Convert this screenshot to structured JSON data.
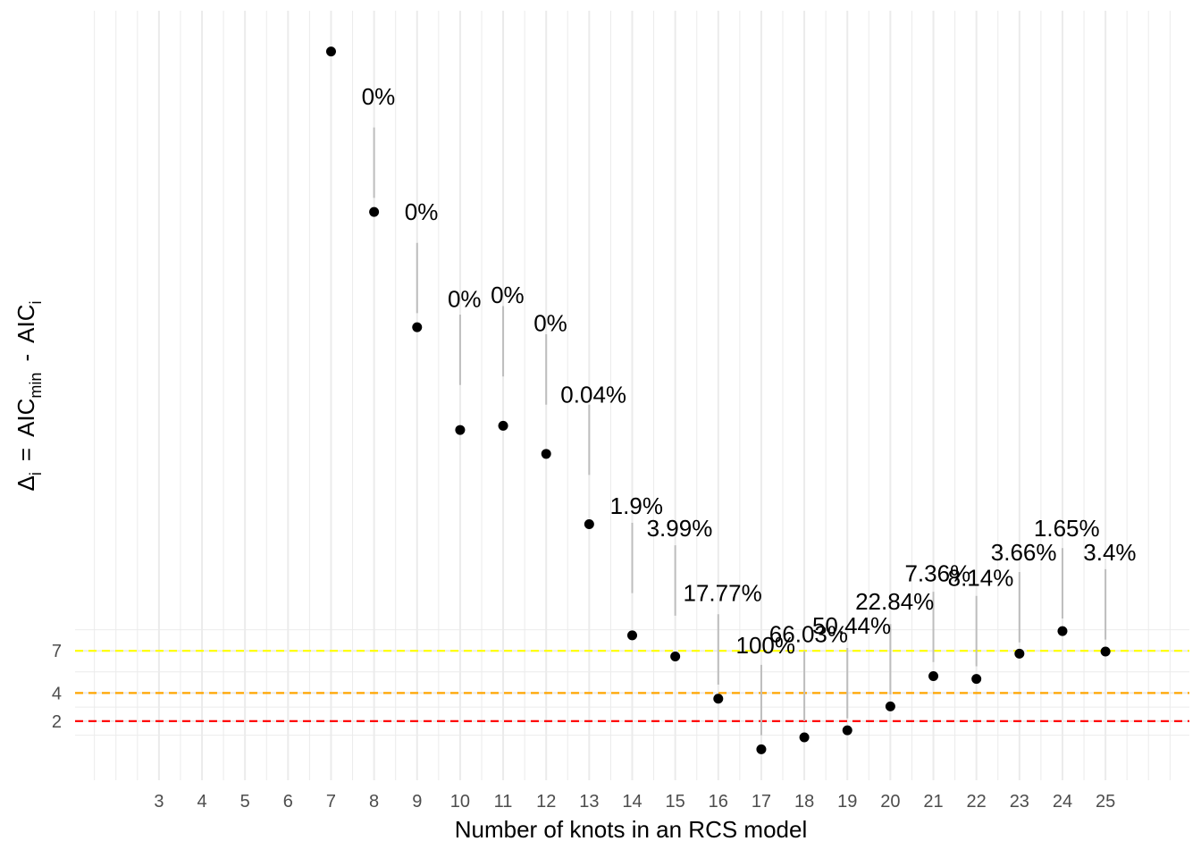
{
  "chart_data": {
    "type": "scatter",
    "xlabel": "Number of knots in an RCS model",
    "ylabel_parts": {
      "delta": "Δ",
      "delta_sub": "i",
      "eq": "=",
      "aic1": "AIC",
      "aic1_sub": "min",
      "minus": "-",
      "aic2": "AIC",
      "aic2_sub": "i"
    },
    "x_ticks": [
      "3",
      "4",
      "5",
      "6",
      "7",
      "8",
      "9",
      "10",
      "11",
      "12",
      "13",
      "14",
      "15",
      "16",
      "17",
      "18",
      "19",
      "20",
      "21",
      "22",
      "23",
      "24",
      "25"
    ],
    "y_ticks": [
      "2",
      "4",
      "7"
    ],
    "xlim": [
      1.05,
      26.95
    ],
    "ylim": [
      -2.2,
      52.5
    ],
    "grid": true,
    "reference_lines": [
      {
        "y": 7,
        "color": "#ffff00"
      },
      {
        "y": 4,
        "color": "#ffa500"
      },
      {
        "y": 2,
        "color": "#ff0000"
      }
    ],
    "points": [
      {
        "x": 7,
        "y": 49.6
      },
      {
        "x": 8,
        "y": 38.2
      },
      {
        "x": 9,
        "y": 30.0
      },
      {
        "x": 10,
        "y": 22.7
      },
      {
        "x": 11,
        "y": 23.0
      },
      {
        "x": 12,
        "y": 21.0
      },
      {
        "x": 13,
        "y": 16.0
      },
      {
        "x": 14,
        "y": 8.1
      },
      {
        "x": 15,
        "y": 6.6
      },
      {
        "x": 16,
        "y": 3.6
      },
      {
        "x": 17,
        "y": 0.0
      },
      {
        "x": 18,
        "y": 0.85
      },
      {
        "x": 19,
        "y": 1.35
      },
      {
        "x": 20,
        "y": 3.05
      },
      {
        "x": 21,
        "y": 5.2
      },
      {
        "x": 22,
        "y": 5.0
      },
      {
        "x": 23,
        "y": 6.8
      },
      {
        "x": 24,
        "y": 8.4
      },
      {
        "x": 25,
        "y": 6.95
      }
    ],
    "annotations": [
      {
        "x": 8,
        "label": "0%",
        "seg_y": [
          39.2,
          44.2
        ],
        "label_y": 46.4
      },
      {
        "x": 9,
        "label": "0%",
        "seg_y": [
          31.0,
          36.0
        ],
        "label_y": 38.2
      },
      {
        "x": 10,
        "label": "0%",
        "seg_y": [
          25.9,
          30.9
        ],
        "label_y": 32.0
      },
      {
        "x": 11,
        "label": "0%",
        "seg_y": [
          26.5,
          31.5
        ],
        "label_y": 32.3
      },
      {
        "x": 12,
        "label": "0%",
        "seg_y": [
          24.5,
          29.5
        ],
        "label_y": 30.3
      },
      {
        "x": 13,
        "label": "0.04%",
        "seg_y": [
          19.5,
          24.5
        ],
        "label_y": 25.2
      },
      {
        "x": 14,
        "label": "1.9%",
        "seg_y": [
          11.1,
          16.1
        ],
        "label_y": 17.3
      },
      {
        "x": 15,
        "label": "3.99%",
        "seg_y": [
          9.5,
          14.5
        ],
        "label_y": 15.7
      },
      {
        "x": 16,
        "label": "17.77%",
        "seg_y": [
          4.6,
          9.6
        ],
        "label_y": 11.1
      },
      {
        "x": 17,
        "label": "100%",
        "seg_y": [
          1.0,
          6.0
        ],
        "label_y": 7.4
      },
      {
        "x": 18,
        "label": "66.03%",
        "seg_y": [
          2.0,
          7.0
        ],
        "label_y": 8.2
      },
      {
        "x": 19,
        "label": "50.44%",
        "seg_y": [
          2.2,
          7.2
        ],
        "label_y": 8.8
      },
      {
        "x": 20,
        "label": "22.84%",
        "seg_y": [
          3.9,
          8.9
        ],
        "label_y": 10.5
      },
      {
        "x": 21,
        "label": "7.36%",
        "seg_y": [
          6.2,
          11.2
        ],
        "label_y": 12.5
      },
      {
        "x": 22,
        "label": "8.14%",
        "seg_y": [
          5.9,
          10.9
        ],
        "label_y": 12.2
      },
      {
        "x": 23,
        "label": "3.66%",
        "seg_y": [
          7.6,
          12.6
        ],
        "label_y": 14.0
      },
      {
        "x": 24,
        "label": "1.65%",
        "seg_y": [
          9.3,
          14.3
        ],
        "label_y": 15.7
      },
      {
        "x": 25,
        "label": "3.4%",
        "seg_y": [
          7.8,
          12.8
        ],
        "label_y": 14.0
      }
    ]
  }
}
